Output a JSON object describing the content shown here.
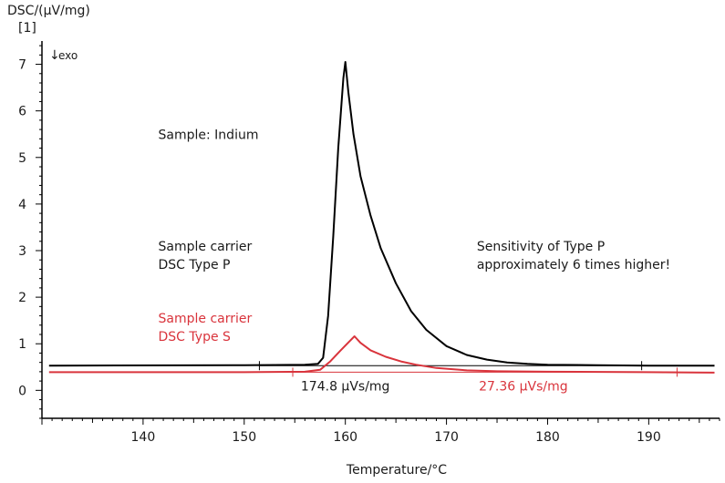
{
  "chart_data": {
    "type": "line",
    "ylabel": "DSC/(µV/mg)",
    "ylabel_index": "[1]",
    "xlabel": "Temperature/°C",
    "exo_label": "exo",
    "xlim": [
      130,
      197
    ],
    "ylim": [
      -0.6,
      7.5
    ],
    "xticks": [
      140,
      150,
      160,
      170,
      180,
      190
    ],
    "yticks": [
      0,
      1,
      2,
      3,
      4,
      5,
      6,
      7
    ],
    "grid": false,
    "series": [
      {
        "color": "#000000",
        "points": [
          [
            130.7,
            0.53
          ],
          [
            150,
            0.54
          ],
          [
            156,
            0.55
          ],
          [
            157.3,
            0.57
          ],
          [
            157.8,
            0.7
          ],
          [
            158.3,
            1.6
          ],
          [
            158.8,
            3.3
          ],
          [
            159.3,
            5.2
          ],
          [
            159.8,
            6.7
          ],
          [
            160.0,
            7.05
          ],
          [
            160.3,
            6.4
          ],
          [
            160.8,
            5.5
          ],
          [
            161.5,
            4.6
          ],
          [
            162.5,
            3.75
          ],
          [
            163.5,
            3.05
          ],
          [
            165,
            2.3
          ],
          [
            166.5,
            1.7
          ],
          [
            168,
            1.3
          ],
          [
            170,
            0.95
          ],
          [
            172,
            0.76
          ],
          [
            174,
            0.66
          ],
          [
            176,
            0.6
          ],
          [
            178,
            0.57
          ],
          [
            180,
            0.55
          ],
          [
            185,
            0.54
          ],
          [
            190,
            0.53
          ],
          [
            196.5,
            0.53
          ]
        ]
      },
      {
        "color": "#d9343c",
        "points": [
          [
            130.7,
            0.39
          ],
          [
            150,
            0.39
          ],
          [
            156,
            0.4
          ],
          [
            157.5,
            0.44
          ],
          [
            158.5,
            0.62
          ],
          [
            159.5,
            0.85
          ],
          [
            160.4,
            1.05
          ],
          [
            160.9,
            1.16
          ],
          [
            161.5,
            1.02
          ],
          [
            162.5,
            0.86
          ],
          [
            164,
            0.72
          ],
          [
            165.5,
            0.62
          ],
          [
            167,
            0.55
          ],
          [
            169,
            0.48
          ],
          [
            172,
            0.43
          ],
          [
            175,
            0.41
          ],
          [
            180,
            0.4
          ],
          [
            190,
            0.39
          ],
          [
            196.5,
            0.38
          ]
        ]
      }
    ],
    "baselines": [
      {
        "color": "#000000",
        "x": [
          151.5,
          189.3
        ],
        "y": [
          0.53,
          0.53
        ]
      },
      {
        "color": "#d9343c",
        "x": [
          154.8,
          192.8
        ],
        "y": [
          0.39,
          0.39
        ]
      }
    ],
    "annotations": [
      {
        "lines": [
          "Sample: Indium"
        ],
        "x": 141.5,
        "y": 5.4,
        "color": "#1a1a1a"
      },
      {
        "lines": [
          "Sample carrier",
          "DSC Type P"
        ],
        "x": 141.5,
        "y": 3.0,
        "color": "#1a1a1a"
      },
      {
        "lines": [
          "Sample carrier",
          "DSC Type S"
        ],
        "x": 141.5,
        "y": 1.45,
        "color": "#d9343c"
      },
      {
        "lines": [
          "Sensitivity of Type P",
          "approximately 6 times higher!"
        ],
        "x": 173.0,
        "y": 3.0,
        "color": "#1a1a1a"
      },
      {
        "lines": [
          "174.8 µVs/mg"
        ],
        "x": 155.6,
        "y": 0.0,
        "color": "#1a1a1a"
      },
      {
        "lines": [
          "27.36 µVs/mg"
        ],
        "x": 173.2,
        "y": 0.0,
        "color": "#d9343c"
      }
    ]
  }
}
